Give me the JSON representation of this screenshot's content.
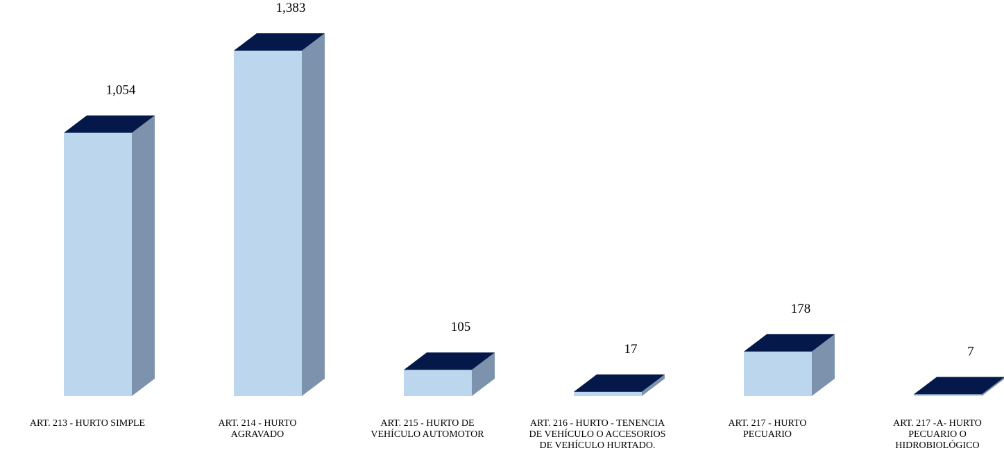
{
  "chart_data": {
    "type": "bar",
    "title": "",
    "xlabel": "",
    "ylabel": "",
    "categories": [
      "ART. 213 - HURTO SIMPLE",
      "ART. 214 - HURTO AGRAVADO",
      "ART. 215 - HURTO DE VEHÍCULO AUTOMOTOR",
      "ART. 216 - HURTO - TENENCIA DE VEHÍCULO O ACCESORIOS DE VEHÍCULO HURTADO.",
      "ART. 217 - HURTO PECUARIO",
      "ART. 217 -A- HURTO PECUARIO O HIDROBIOLÓGICO"
    ],
    "values": [
      1054,
      1383,
      105,
      17,
      178,
      7
    ],
    "value_labels": [
      "1,054",
      "1,383",
      "105",
      "17",
      "178",
      "7"
    ],
    "ylim": [
      0,
      1383
    ],
    "grid": false,
    "legend": "none",
    "style": "3d-column",
    "colors": {
      "front": "#022060",
      "front_fade": "#bcd6ee",
      "top": "#04194a",
      "side": "#031a48",
      "side_fade": "#7d93ad"
    }
  }
}
